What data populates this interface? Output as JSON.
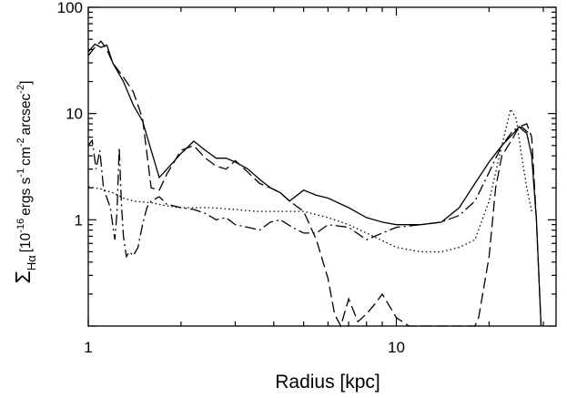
{
  "chart_data": {
    "type": "line",
    "xscale": "log",
    "yscale": "log",
    "xlim": [
      1,
      33
    ],
    "ylim": [
      0.1,
      100
    ],
    "xticks": [
      {
        "value": 1,
        "label": "1"
      },
      {
        "value": 10,
        "label": "10"
      }
    ],
    "yticks": [
      {
        "value": 100,
        "label": "100"
      },
      {
        "value": 10,
        "label": "10"
      },
      {
        "value": 1,
        "label": "1"
      }
    ],
    "xlabel": "Radius [kpc]",
    "ylabel": {
      "symbol": "Σ",
      "subscript": "Hα",
      "open": "[10",
      "exp1": "-16",
      "units1": "ergs s",
      "exp2": "-1",
      "units2": "cm",
      "exp3": "-2",
      "units3": "arcsec",
      "exp4": "-2",
      "close": "]"
    },
    "grid": false,
    "legend": "none",
    "series": [
      {
        "style": "solid",
        "x": [
          1.0,
          1.05,
          1.1,
          1.15,
          1.2,
          1.3,
          1.4,
          1.5,
          1.6,
          1.7,
          1.8,
          2.0,
          2.2,
          2.4,
          2.6,
          2.8,
          3.0,
          3.3,
          3.6,
          3.9,
          4.2,
          4.5,
          5.0,
          5.5,
          6.0,
          7.0,
          8.0,
          9.0,
          10.0,
          12.0,
          14.0,
          16.0,
          18.0,
          20.0,
          22.0,
          24.0,
          25.0,
          26.5,
          27.5,
          28.5,
          29.5
        ],
        "y": [
          38,
          45,
          42,
          44,
          30,
          20,
          12,
          8.5,
          4.5,
          2.5,
          3.0,
          4.2,
          5.5,
          4.5,
          3.8,
          3.8,
          3.5,
          3.0,
          2.4,
          2.0,
          1.8,
          1.5,
          1.9,
          1.7,
          1.6,
          1.3,
          1.05,
          0.95,
          0.9,
          0.9,
          0.95,
          1.3,
          2.2,
          3.5,
          5.0,
          6.5,
          7.5,
          6.5,
          4.0,
          1.0,
          0.1
        ]
      },
      {
        "style": "dash",
        "x": [
          1.0,
          1.05,
          1.1,
          1.15,
          1.2,
          1.3,
          1.4,
          1.5,
          1.6,
          1.7,
          1.8,
          2.0,
          2.2,
          2.4,
          2.6,
          2.8,
          3.0,
          3.3,
          3.6,
          3.9,
          4.2,
          4.5,
          5.0,
          5.5,
          6.0,
          6.3,
          6.6,
          7.0,
          7.5,
          8.0,
          8.5,
          9.0,
          10.0,
          11.0,
          12.0,
          14.0,
          16.0,
          17.0,
          17.5,
          18.0,
          18.5,
          20.0,
          21.0,
          22.0,
          24.0,
          25.0,
          26.5,
          27.5,
          28.5,
          29.5
        ],
        "y": [
          35,
          42,
          48,
          40,
          30,
          22,
          16,
          9,
          2.0,
          1.9,
          2.7,
          4.5,
          5.0,
          3.8,
          3.2,
          3.0,
          3.6,
          2.8,
          2.2,
          2.0,
          1.8,
          1.5,
          1.2,
          0.65,
          0.28,
          0.13,
          0.1,
          0.18,
          0.11,
          0.13,
          0.16,
          0.2,
          0.12,
          0.1,
          0.1,
          0.1,
          0.1,
          0.1,
          0.1,
          0.1,
          0.12,
          0.45,
          2.0,
          4.0,
          6.0,
          7.5,
          8.0,
          6.0,
          1.0,
          0.1
        ]
      },
      {
        "style": "dashdot",
        "x": [
          1.0,
          1.03,
          1.06,
          1.09,
          1.12,
          1.15,
          1.18,
          1.2,
          1.22,
          1.24,
          1.26,
          1.28,
          1.3,
          1.33,
          1.36,
          1.4,
          1.45,
          1.5,
          1.55,
          1.6,
          1.7,
          1.8,
          2.0,
          2.2,
          2.4,
          2.6,
          2.8,
          3.0,
          3.3,
          3.6,
          3.9,
          4.2,
          4.6,
          5.0,
          5.5,
          6.0,
          7.0,
          8.0,
          9.0,
          10.0,
          12.0,
          14.0,
          16.0,
          18.0,
          20.0,
          22.0,
          24.0,
          25.5,
          27.0
        ],
        "y": [
          5.0,
          5.6,
          3.0,
          4.5,
          2.0,
          1.6,
          1.3,
          0.9,
          0.65,
          1.2,
          4.8,
          1.5,
          0.7,
          0.45,
          0.5,
          0.46,
          0.55,
          0.9,
          1.3,
          1.5,
          1.65,
          1.4,
          1.3,
          1.25,
          1.15,
          1.0,
          1.05,
          0.9,
          0.85,
          0.8,
          0.95,
          1.0,
          0.85,
          0.75,
          0.75,
          0.9,
          0.85,
          0.65,
          0.75,
          0.85,
          0.9,
          0.95,
          1.1,
          1.5,
          2.8,
          5.0,
          7.0,
          7.5,
          6.5
        ]
      },
      {
        "style": "dotted",
        "x": [
          1.0,
          1.1,
          1.2,
          1.3,
          1.4,
          1.6,
          1.8,
          2.0,
          2.5,
          3.0,
          3.5,
          4.0,
          5.0,
          6.0,
          7.0,
          8.0,
          10.0,
          12.0,
          14.0,
          16.0,
          18.0,
          20.0,
          22.0,
          23.5,
          24.5,
          25.5,
          26.5,
          27.5
        ],
        "y": [
          2.05,
          1.95,
          1.8,
          1.6,
          1.5,
          1.45,
          1.35,
          1.3,
          1.3,
          1.25,
          1.2,
          1.2,
          1.2,
          1.05,
          0.9,
          0.75,
          0.55,
          0.5,
          0.5,
          0.55,
          0.65,
          1.5,
          5.0,
          11.0,
          9.0,
          4.0,
          2.0,
          1.2
        ]
      }
    ]
  }
}
